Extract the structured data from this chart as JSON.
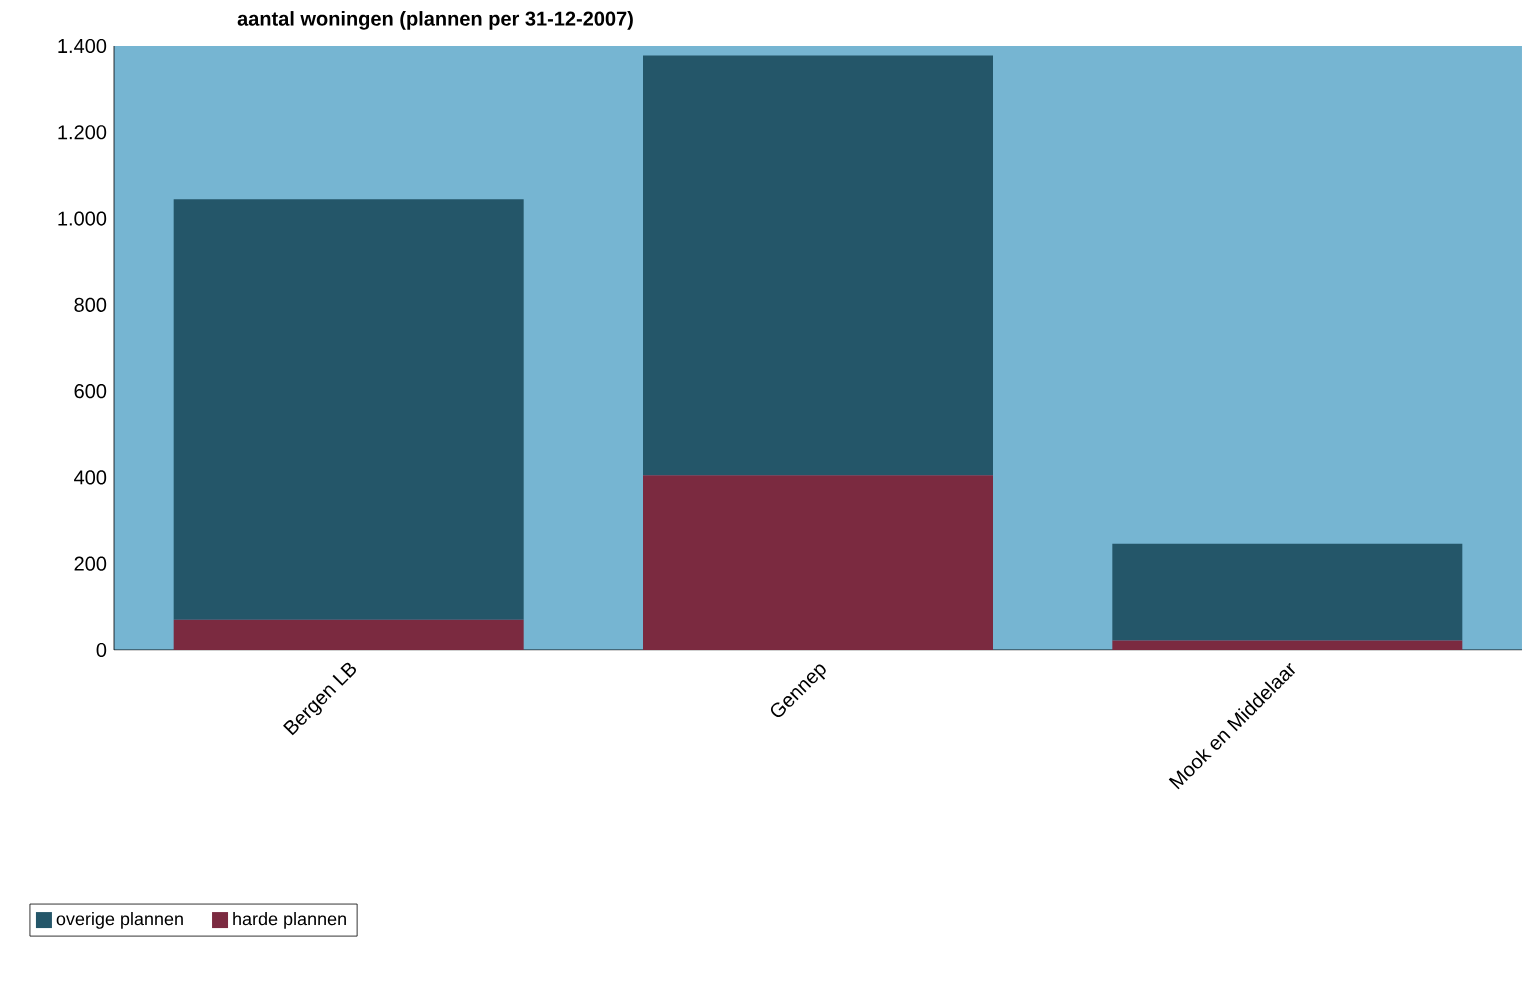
{
  "chart_data": {
    "type": "bar",
    "title": "aantal  woningen (plannen per 31-12-2007)",
    "categories": [
      "Bergen LB",
      "Gennep",
      "Mook en Middelaar"
    ],
    "stacked": true,
    "series": [
      {
        "name": "harde plannen",
        "color": "#7b2a40",
        "values": [
          70,
          405,
          22
        ]
      },
      {
        "name": "overige plannen",
        "color": "#245669",
        "values": [
          975,
          973,
          224
        ]
      }
    ],
    "ylim": [
      0,
      1400
    ],
    "yticks": [
      {
        "value": 0,
        "label": "0"
      },
      {
        "value": 200,
        "label": "200"
      },
      {
        "value": 400,
        "label": "400"
      },
      {
        "value": 600,
        "label": "600"
      },
      {
        "value": 800,
        "label": "800"
      },
      {
        "value": 1000,
        "label": "1.000"
      },
      {
        "value": 1200,
        "label": "1.200"
      },
      {
        "value": 1400,
        "label": "1.400"
      }
    ],
    "grid": false,
    "legend": "bottom left"
  }
}
